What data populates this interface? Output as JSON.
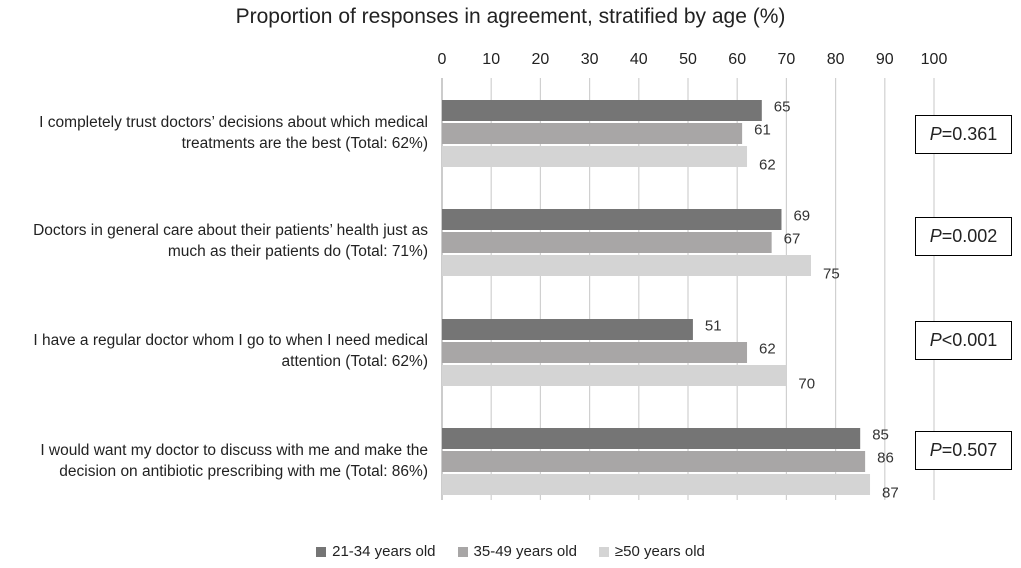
{
  "chart_data": {
    "type": "bar",
    "orientation": "horizontal",
    "title": "Proportion of responses in agreement, stratified by age (%)",
    "xlim": [
      0,
      100
    ],
    "x_ticks": [
      "0",
      "10",
      "20",
      "30",
      "40",
      "50",
      "60",
      "70",
      "80",
      "90",
      "100"
    ],
    "grid": true,
    "categories": [
      "I completely trust doctors’ decisions about which medical treatments are the best (Total: 62%)",
      "Doctors in general care about their patients’ health just as much as their patients do (Total: 71%)",
      "I have a regular doctor whom I go to when I need medical attention (Total: 62%)",
      "I would want my doctor to discuss with me and make the decision on antibiotic prescribing with me (Total: 86%)"
    ],
    "series": [
      {
        "name": "21-34 years old",
        "color": "#757575",
        "values": [
          65,
          69,
          51,
          85
        ]
      },
      {
        "name": "35-49 years old",
        "color": "#a8a6a6",
        "values": [
          61,
          67,
          62,
          86
        ]
      },
      {
        "name": "≥50 years old",
        "color": "#d4d4d4",
        "values": [
          62,
          75,
          70,
          87
        ]
      }
    ],
    "p_values": [
      {
        "prefix": "P",
        "text": "=0.361"
      },
      {
        "prefix": "P",
        "text": "=0.002"
      },
      {
        "prefix": "P",
        "text": "<0.001"
      },
      {
        "prefix": "P",
        "text": "=0.507"
      }
    ],
    "legend_position": "bottom"
  }
}
